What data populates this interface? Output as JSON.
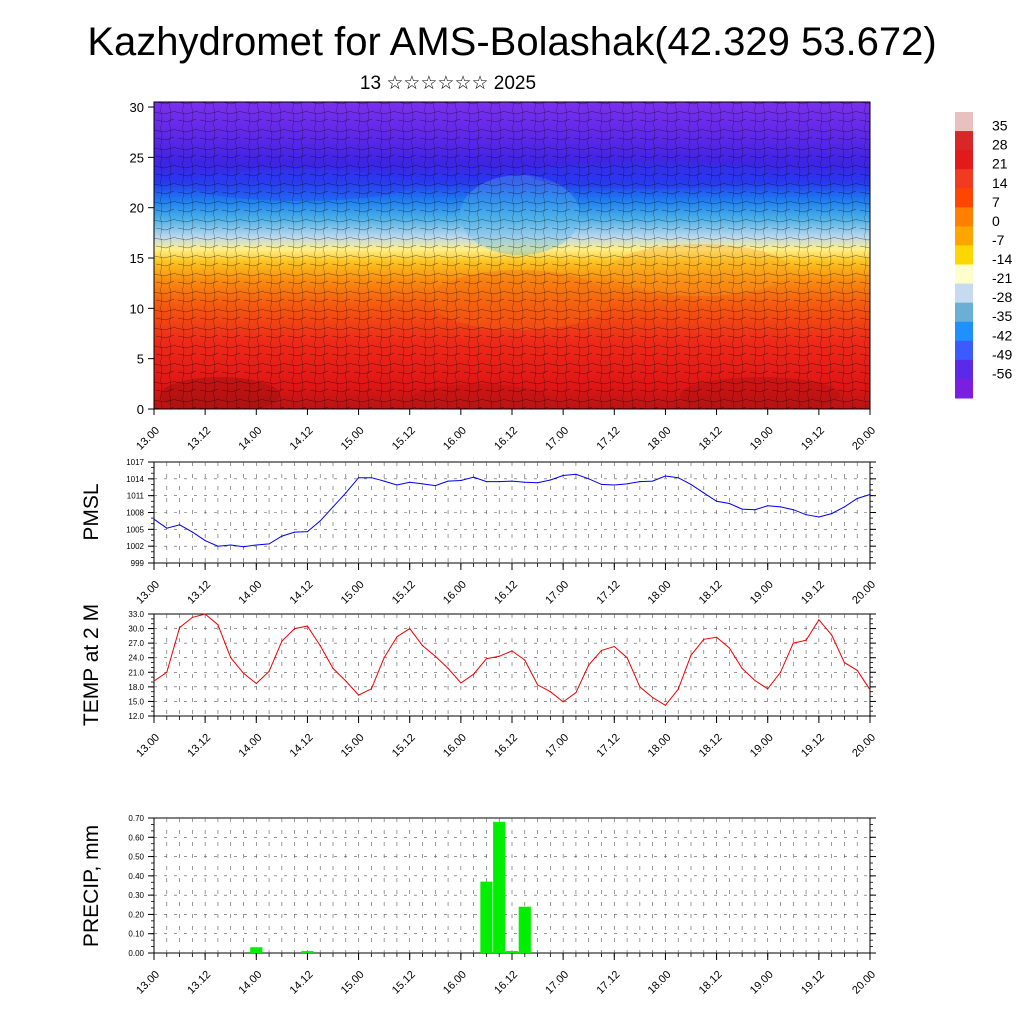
{
  "title": "Kazhydromet for AMS-Bolashak(42.329 53.672)",
  "subtitle": "13 ☆☆☆☆☆☆ 2025",
  "colors": {
    "pmsl_line": "#0000ee",
    "temp_line": "#ee0000",
    "precip_bar": "#00ee00",
    "streamline": "#000000",
    "grid": "#555555"
  },
  "time_labels": [
    "13.00",
    "13.12",
    "14.00",
    "14.12",
    "15.00",
    "15.12",
    "16.00",
    "16.12",
    "17.00",
    "17.12",
    "18.00",
    "18.12",
    "19.00",
    "19.12",
    "20.00"
  ],
  "colorbar": {
    "labels": [
      "35",
      "28",
      "21",
      "14",
      "7",
      "0",
      "-7",
      "-14",
      "-21",
      "-28",
      "-35",
      "-42",
      "-49",
      "-56"
    ],
    "colors": [
      "#e8c0c0",
      "#d92626",
      "#e31a1c",
      "#f03b20",
      "#ff4500",
      "#ff7f00",
      "#ffa500",
      "#ffd700",
      "#ffffcc",
      "#c6dbef",
      "#6baed6",
      "#1e90ff",
      "#3a5bff",
      "#5a2ae8",
      "#7a1ee0"
    ]
  },
  "chart_data": [
    {
      "type": "heatmap",
      "description_of_axes": "",
      "y_ticks": [
        "0",
        "5",
        "10",
        "15",
        "20",
        "25",
        "30"
      ],
      "ylim": [
        0,
        30.5
      ],
      "x_ticks": [
        "13.00",
        "13.12",
        "14.00",
        "14.12",
        "15.00",
        "15.12",
        "16.00",
        "16.12",
        "17.00",
        "17.12",
        "18.00",
        "18.12",
        "19.00",
        "19.12",
        "20.00"
      ],
      "colorbar_range": [
        -56,
        35
      ]
    },
    {
      "type": "line",
      "ylabel": "PMSL",
      "ylim": [
        999,
        1017
      ],
      "y_ticks": [
        "1017",
        "1014",
        "1011",
        "1008",
        "1005",
        "1002",
        "999"
      ],
      "x": [
        "13.00",
        "13.03",
        "13.06",
        "13.09",
        "13.12",
        "13.15",
        "13.18",
        "13.21",
        "14.00",
        "14.03",
        "14.06",
        "14.09",
        "14.12",
        "14.15",
        "14.18",
        "14.21",
        "15.00",
        "15.03",
        "15.06",
        "15.09",
        "15.12",
        "15.15",
        "15.18",
        "15.21",
        "16.00",
        "16.03",
        "16.06",
        "16.09",
        "16.12",
        "16.15",
        "16.18",
        "16.21",
        "17.00",
        "17.03",
        "17.06",
        "17.09",
        "17.12",
        "17.15",
        "17.18",
        "17.21",
        "18.00",
        "18.03",
        "18.06",
        "18.09",
        "18.12",
        "18.15",
        "18.18",
        "18.21",
        "19.00",
        "19.03",
        "19.06",
        "19.09",
        "19.12",
        "19.15",
        "19.18",
        "19.21",
        "20.00"
      ],
      "values": [
        1006.8,
        1005.2,
        1005.8,
        1004.5,
        1003.0,
        1002.0,
        1002.2,
        1001.9,
        1002.2,
        1002.4,
        1003.8,
        1004.5,
        1004.6,
        1006.5,
        1009.0,
        1011.5,
        1014.2,
        1014.2,
        1013.6,
        1012.9,
        1013.4,
        1013.1,
        1012.8,
        1013.6,
        1013.7,
        1014.3,
        1013.5,
        1013.5,
        1013.6,
        1013.4,
        1013.3,
        1013.8,
        1014.6,
        1014.8,
        1014.0,
        1013.0,
        1012.9,
        1013.1,
        1013.5,
        1013.6,
        1014.5,
        1014.2,
        1013.0,
        1011.5,
        1010.0,
        1009.6,
        1008.6,
        1008.5,
        1009.2,
        1009.0,
        1008.5,
        1007.6,
        1007.2,
        1007.8,
        1009.0,
        1010.5,
        1011.2
      ]
    },
    {
      "type": "line",
      "ylabel": "TEMP at 2 M",
      "ylim": [
        12.0,
        33.0
      ],
      "y_ticks": [
        "33.0",
        "30.0",
        "27.0",
        "24.0",
        "21.0",
        "18.0",
        "15.0",
        "12.0"
      ],
      "x": [
        "13.00",
        "13.03",
        "13.06",
        "13.09",
        "13.12",
        "13.15",
        "13.18",
        "13.21",
        "14.00",
        "14.03",
        "14.06",
        "14.09",
        "14.12",
        "14.15",
        "14.18",
        "14.21",
        "15.00",
        "15.03",
        "15.06",
        "15.09",
        "15.12",
        "15.15",
        "15.18",
        "15.21",
        "16.00",
        "16.03",
        "16.06",
        "16.09",
        "16.12",
        "16.15",
        "16.18",
        "16.21",
        "17.00",
        "17.03",
        "17.06",
        "17.09",
        "17.12",
        "17.15",
        "17.18",
        "17.21",
        "18.00",
        "18.03",
        "18.06",
        "18.09",
        "18.12",
        "18.15",
        "18.18",
        "18.21",
        "19.00",
        "19.03",
        "19.06",
        "19.09",
        "19.12",
        "19.15",
        "19.18",
        "19.21",
        "20.00"
      ],
      "values": [
        19.2,
        21.0,
        30.2,
        32.3,
        33.0,
        30.8,
        24.0,
        20.8,
        18.7,
        21.2,
        27.4,
        30.0,
        30.5,
        26.5,
        21.8,
        19.2,
        16.3,
        17.6,
        24.0,
        28.3,
        30.0,
        26.5,
        24.3,
        21.8,
        18.8,
        20.6,
        23.8,
        24.3,
        25.4,
        23.5,
        18.4,
        17.0,
        14.9,
        16.8,
        22.5,
        25.5,
        26.3,
        24.0,
        18.0,
        15.8,
        14.2,
        17.5,
        24.5,
        27.8,
        28.2,
        26.0,
        21.8,
        19.3,
        17.6,
        21.0,
        27.0,
        27.6,
        31.8,
        28.7,
        23.0,
        21.4,
        17.4
      ]
    },
    {
      "type": "bar",
      "ylabel": "PRECIP, mm",
      "ylim": [
        0.0,
        0.7
      ],
      "y_ticks": [
        "0.70",
        "0.60",
        "0.50",
        "0.40",
        "0.30",
        "0.20",
        "0.10",
        "0.00"
      ],
      "x": [
        "14.00",
        "14.12",
        "16.06",
        "16.09",
        "16.12",
        "16.15"
      ],
      "values": [
        0.03,
        0.01,
        0.37,
        0.68,
        0.01,
        0.24
      ]
    }
  ]
}
